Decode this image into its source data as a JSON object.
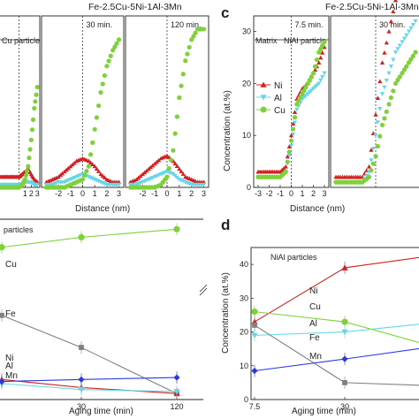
{
  "colors": {
    "Fe": "#808080",
    "Ni": "#d42020",
    "Al": "#66d6e8",
    "Cu": "#7ed13a",
    "Mn": "#2a3ae0",
    "axis": "#222222"
  },
  "chart_data": [
    {
      "id": "a",
      "type": "scatter",
      "title": "Fe-2.5Cu-5Ni-1Al-3Mn",
      "boundary_label": "Cu particle",
      "xlabel": "Distance  (nm)",
      "subpanels": [
        {
          "label": "",
          "x": [
            -3,
            -2.5,
            -2,
            -1.5,
            -1,
            -0.5,
            0,
            0.5,
            1,
            1.5,
            2,
            2.5,
            3
          ],
          "xticks": [
            "1",
            "2",
            "3"
          ],
          "series": [
            {
              "name": "Ni",
              "values": [
                4,
                4,
                4,
                4,
                4,
                4,
                4,
                5,
                6,
                7,
                5,
                3,
                2
              ]
            },
            {
              "name": "Al",
              "values": [
                1,
                1,
                1,
                1,
                1,
                1,
                1,
                1,
                2,
                2,
                2,
                1,
                1
              ]
            },
            {
              "name": "Cu",
              "values": [
                0,
                0,
                0,
                0,
                0,
                0,
                0,
                1,
                3,
                8,
                18,
                30,
                38
              ]
            }
          ]
        },
        {
          "label": "30 min.",
          "x": [
            -3,
            -2.5,
            -2,
            -1.5,
            -1,
            -0.5,
            0,
            0.5,
            1,
            1.5,
            2,
            2.5,
            3
          ],
          "xticks": [
            "-2",
            "-1",
            "0",
            "1",
            "2",
            "3"
          ],
          "series": [
            {
              "name": "Ni",
              "values": [
                2,
                3,
                4,
                6,
                8,
                10,
                11,
                10,
                8,
                5,
                3,
                2,
                2
              ]
            },
            {
              "name": "Al",
              "values": [
                1,
                1,
                2,
                2,
                3,
                4,
                5,
                4,
                3,
                2,
                1,
                1,
                1
              ]
            },
            {
              "name": "Cu",
              "values": [
                0,
                0,
                0,
                0,
                1,
                2,
                3,
                8,
                22,
                36,
                46,
                52,
                56
              ]
            }
          ]
        },
        {
          "label": "120 min.",
          "x": [
            -3,
            -2.5,
            -2,
            -1.5,
            -1,
            -0.5,
            0,
            0.5,
            1,
            1.5,
            2,
            2.5,
            3
          ],
          "xticks": [
            "-2",
            "-1",
            "0",
            "1",
            "2",
            "3"
          ],
          "series": [
            {
              "name": "Ni",
              "values": [
                2,
                3,
                5,
                7,
                9,
                11,
                12,
                10,
                7,
                4,
                3,
                2,
                2
              ]
            },
            {
              "name": "Al",
              "values": [
                1,
                1,
                2,
                3,
                4,
                5,
                6,
                5,
                3,
                2,
                1,
                1,
                1
              ]
            },
            {
              "name": "Cu",
              "values": [
                0,
                0,
                0,
                0,
                0,
                1,
                4,
                14,
                34,
                48,
                56,
                60,
                60
              ]
            }
          ]
        }
      ],
      "ylim": [
        0,
        65
      ]
    },
    {
      "id": "b",
      "type": "line",
      "title": "particles",
      "xlabel": "Aging time (min)",
      "categories": [
        "30",
        "120"
      ],
      "series": [
        {
          "name": "Cu",
          "values": [
            [
              7.5,
              86
            ],
            [
              30,
              91
            ],
            [
              120,
              95
            ]
          ]
        },
        {
          "name": "Fe",
          "values": [
            [
              7.5,
              52
            ],
            [
              30,
              36
            ],
            [
              120,
              13
            ]
          ]
        },
        {
          "name": "Ni",
          "values": [
            [
              7.5,
              20
            ],
            [
              30,
              16
            ],
            [
              120,
              13
            ]
          ]
        },
        {
          "name": "Al",
          "values": [
            [
              7.5,
              18
            ],
            [
              30,
              15
            ],
            [
              120,
              14
            ]
          ]
        },
        {
          "name": "Mn",
          "values": [
            [
              7.5,
              19
            ],
            [
              30,
              20
            ],
            [
              120,
              21
            ]
          ]
        }
      ],
      "ylim": [
        10,
        100
      ]
    },
    {
      "id": "c",
      "type": "scatter",
      "title": "Fe-2.5Cu-5Ni-1Al-3Mn",
      "boundary_labels": {
        "left": "Matrix",
        "right": "NiAl particle"
      },
      "ylabel": "Concentration  (at.%)",
      "xlabel": "Distance  (nm)",
      "legend": [
        "Ni",
        "Al",
        "Cu"
      ],
      "legend_position": "middle-left",
      "yticks": [
        "0",
        "10",
        "20",
        "30"
      ],
      "ylim": [
        0,
        33
      ],
      "subpanels": [
        {
          "label": "7.5 min.",
          "x": [
            -3,
            -2.5,
            -2,
            -1.5,
            -1,
            -0.5,
            0,
            0.5,
            1,
            1.5,
            2,
            2.5,
            3
          ],
          "xticks": [
            "-3",
            "-2",
            "-1",
            "0",
            "1",
            "2",
            "3"
          ],
          "series": [
            {
              "name": "Ni",
              "values": [
                3,
                3,
                3,
                3,
                3,
                4,
                10,
                17,
                19,
                20,
                22,
                24,
                27
              ]
            },
            {
              "name": "Al",
              "values": [
                2,
                2,
                2,
                2,
                2,
                3,
                8,
                15,
                17,
                18,
                19,
                20,
                22
              ]
            },
            {
              "name": "Cu",
              "values": [
                2,
                2,
                2,
                2,
                2,
                3,
                9,
                16,
                18,
                20,
                22,
                26,
                28
              ]
            }
          ]
        },
        {
          "label": "30 min.",
          "x": [
            -3,
            -2.5,
            -2,
            -1.5,
            -1,
            -0.5,
            0,
            0.5,
            1,
            1.5,
            2,
            2.5,
            3
          ],
          "xticks": [],
          "series": [
            {
              "name": "Ni",
              "values": [
                2,
                2,
                2,
                2,
                2,
                4,
                14,
                24,
                30,
                36,
                40,
                42,
                44
              ]
            },
            {
              "name": "Al",
              "values": [
                1,
                1,
                1,
                1,
                1,
                3,
                10,
                18,
                22,
                26,
                28,
                30,
                32
              ]
            },
            {
              "name": "Cu",
              "values": [
                1,
                1,
                1,
                1,
                1,
                2,
                6,
                12,
                16,
                20,
                22,
                24,
                26
              ]
            }
          ]
        }
      ]
    },
    {
      "id": "d",
      "type": "line",
      "title": "NiAl particles",
      "ylabel": "Concentration (at.%)",
      "xlabel": "Aging time (min)",
      "categories": [
        "7.5",
        "30"
      ],
      "yticks": [
        "0",
        "10",
        "20",
        "30",
        "40"
      ],
      "ylim": [
        0,
        45
      ],
      "series": [
        {
          "name": "Ni",
          "values": [
            [
              7.5,
              23
            ],
            [
              30,
              39
            ],
            [
              120,
              43
            ]
          ]
        },
        {
          "name": "Cu",
          "values": [
            [
              7.5,
              26
            ],
            [
              30,
              23
            ],
            [
              120,
              15
            ]
          ]
        },
        {
          "name": "Al",
          "values": [
            [
              7.5,
              19
            ],
            [
              30,
              20
            ],
            [
              120,
              23
            ]
          ]
        },
        {
          "name": "Fe",
          "values": [
            [
              7.5,
              22
            ],
            [
              30,
              5
            ],
            [
              120,
              4
            ]
          ]
        },
        {
          "name": "Mn",
          "values": [
            [
              7.5,
              8.5
            ],
            [
              30,
              12
            ],
            [
              120,
              16
            ]
          ]
        }
      ]
    }
  ]
}
